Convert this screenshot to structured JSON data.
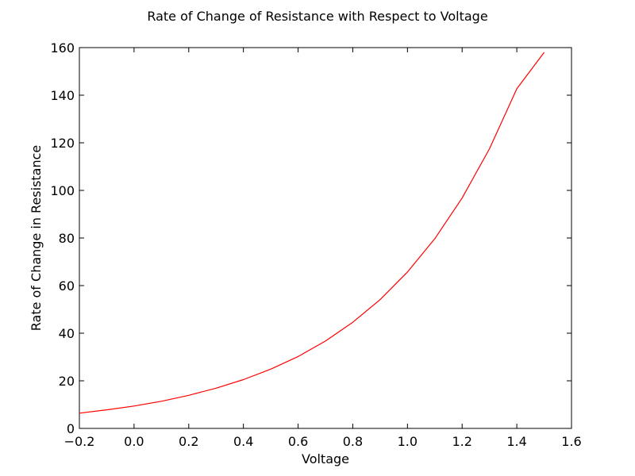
{
  "chart_data": {
    "type": "line",
    "title": "Rate of Change of Resistance with Respect to Voltage",
    "xlabel": "Voltage",
    "ylabel": "Rate of Change in Resistance",
    "xlim": [
      -0.2,
      1.6
    ],
    "ylim": [
      0,
      160
    ],
    "xticks": [
      "−0.2",
      "0.0",
      "0.2",
      "0.4",
      "0.6",
      "0.8",
      "1.0",
      "1.2",
      "1.4",
      "1.6"
    ],
    "xtick_values": [
      -0.2,
      0.0,
      0.2,
      0.4,
      0.6,
      0.8,
      1.0,
      1.2,
      1.4,
      1.6
    ],
    "yticks": [
      "0",
      "20",
      "40",
      "60",
      "80",
      "100",
      "120",
      "140",
      "160"
    ],
    "ytick_values": [
      0,
      20,
      40,
      60,
      80,
      100,
      120,
      140,
      160
    ],
    "grid": false,
    "series": [
      {
        "color": "#ff0000",
        "x": [
          -0.2,
          -0.1,
          0.0,
          0.1,
          0.2,
          0.3,
          0.4,
          0.5,
          0.6,
          0.7,
          0.8,
          0.9,
          1.0,
          1.1,
          1.2,
          1.3,
          1.4,
          1.5
        ],
        "y": [
          6.4,
          7.8,
          9.4,
          11.4,
          13.9,
          16.9,
          20.5,
          24.9,
          30.2,
          36.7,
          44.6,
          54.1,
          65.7,
          79.7,
          96.8,
          117.5,
          142.7,
          158.0
        ]
      }
    ]
  }
}
